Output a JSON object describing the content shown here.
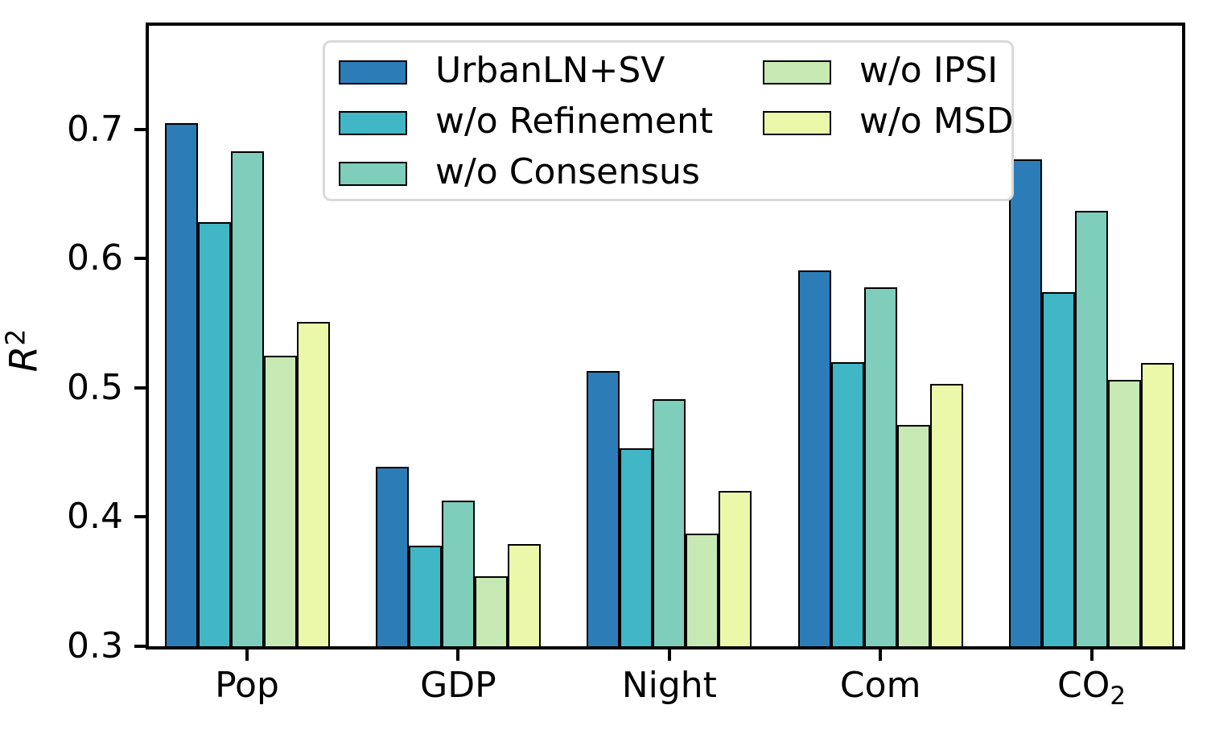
{
  "chart_data": {
    "type": "bar",
    "title": "",
    "ylabel": {
      "base": "R",
      "sup": "2"
    },
    "xlabel": "",
    "categories": [
      {
        "text": "Pop",
        "sub": ""
      },
      {
        "text": "GDP",
        "sub": ""
      },
      {
        "text": "Night",
        "sub": ""
      },
      {
        "text": "Com",
        "sub": ""
      },
      {
        "text": "CO",
        "sub": "2"
      }
    ],
    "series": [
      {
        "name": "UrbanLN+SV",
        "color": "#2c7cb8",
        "values": [
          0.705,
          0.439,
          0.513,
          0.591,
          0.677
        ]
      },
      {
        "name": "w/o Refinement",
        "color": "#41b6c4",
        "values": [
          0.628,
          0.378,
          0.453,
          0.52,
          0.574
        ]
      },
      {
        "name": "w/o Consensus",
        "color": "#7fcdbb",
        "values": [
          0.683,
          0.413,
          0.491,
          0.578,
          0.637
        ]
      },
      {
        "name": "w/o IPSI",
        "color": "#c7e9b4",
        "values": [
          0.525,
          0.354,
          0.387,
          0.471,
          0.506
        ]
      },
      {
        "name": "w/o MSD",
        "color": "#ebf7a9",
        "values": [
          0.551,
          0.379,
          0.42,
          0.503,
          0.519
        ]
      }
    ],
    "yticks": [
      0.3,
      0.4,
      0.5,
      0.6,
      0.7
    ],
    "ylim": [
      0.3,
      0.78
    ],
    "grid": false,
    "bar_edge_color": "#000000",
    "axis_color": "#000000",
    "legend": {
      "position": "upper left",
      "columns": 2,
      "column_split": 3,
      "border_color": "#d9d9d9",
      "background": "#ffffff"
    }
  }
}
